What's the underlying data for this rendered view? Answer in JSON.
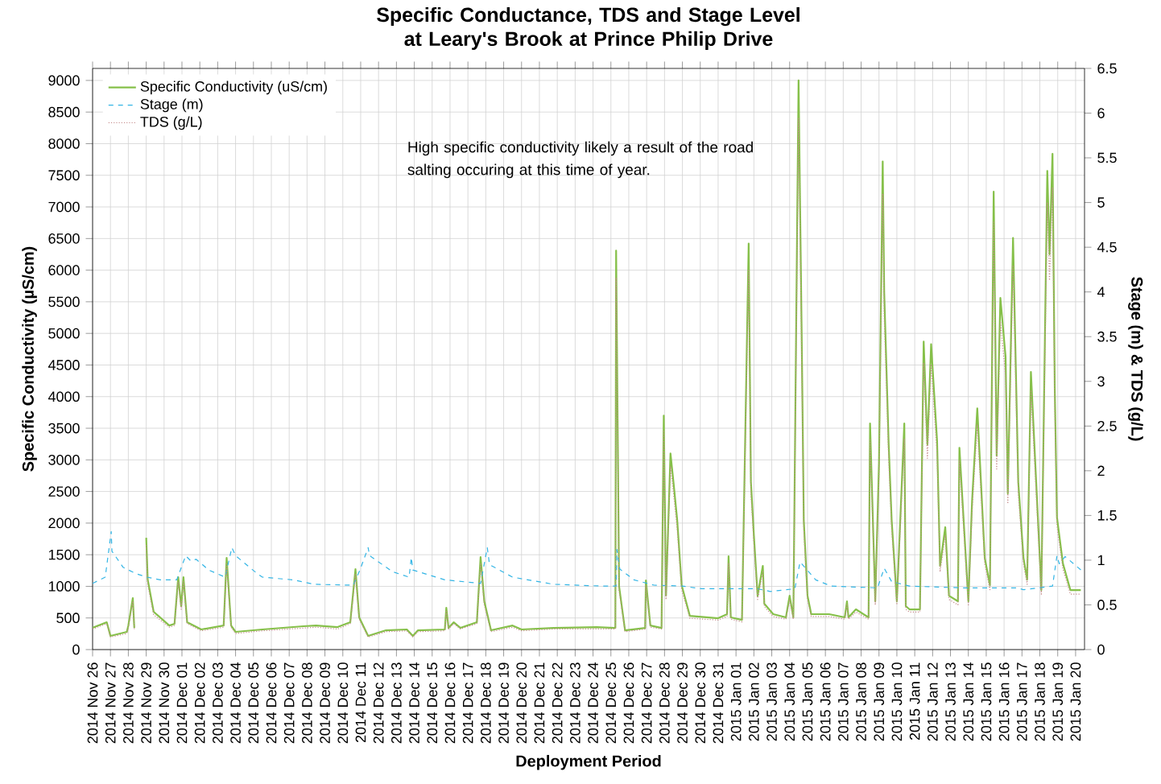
{
  "chart_data": {
    "type": "line",
    "title": "Specific Conductance, TDS and Stage Level at Leary's Brook at Prince Philip Drive",
    "xlabel": "Deployment Period",
    "ylabel": "Specific Conductivity (µS/cm)",
    "y2label": "Stage (m) & TDS (g/L)",
    "annotations": [
      "High specific conductivity likely a result of the road salting occuring at this time of year."
    ],
    "grid": true,
    "legend": "top left",
    "xlim": [
      "2014-11-26T00:00",
      "2015-01-20T12:00"
    ],
    "ylim": [
      0,
      9190
    ],
    "yticks": [
      0,
      500,
      1000,
      1500,
      2000,
      2500,
      3000,
      3500,
      4000,
      4500,
      5000,
      5500,
      6000,
      6500,
      7000,
      7500,
      8000,
      8500,
      9000
    ],
    "y2lim": [
      0,
      6.5
    ],
    "y2ticks": [
      0,
      0.5,
      1,
      1.5,
      2,
      2.5,
      3,
      3.5,
      4,
      4.5,
      5,
      5.5,
      6,
      6.5
    ],
    "xticks": [
      {
        "value": "2014-11-26",
        "label": "2014 Nov 26"
      },
      {
        "value": "2014-11-27",
        "label": "2014 Nov 27"
      },
      {
        "value": "2014-11-28",
        "label": "2014 Nov 28"
      },
      {
        "value": "2014-11-29",
        "label": "2014 Nov 29"
      },
      {
        "value": "2014-11-30",
        "label": "2014 Nov 30"
      },
      {
        "value": "2014-12-01",
        "label": "2014 Dec 01"
      },
      {
        "value": "2014-12-02",
        "label": "2014 Dec 02"
      },
      {
        "value": "2014-12-03",
        "label": "2014 Dec 03"
      },
      {
        "value": "2014-12-04",
        "label": "2014 Dec 04"
      },
      {
        "value": "2014-12-05",
        "label": "2014 Dec 05"
      },
      {
        "value": "2014-12-06",
        "label": "2014 Dec 06"
      },
      {
        "value": "2014-12-07",
        "label": "2014 Dec 07"
      },
      {
        "value": "2014-12-08",
        "label": "2014 Dec 08"
      },
      {
        "value": "2014-12-09",
        "label": "2014 Dec 09"
      },
      {
        "value": "2014-12-10",
        "label": "2014 Dec 10"
      },
      {
        "value": "2014-12-11",
        "label": "2014 Dec 11"
      },
      {
        "value": "2014-12-12",
        "label": "2014 Dec 12"
      },
      {
        "value": "2014-12-13",
        "label": "2014 Dec 13"
      },
      {
        "value": "2014-12-14",
        "label": "2014 Dec 14"
      },
      {
        "value": "2014-12-15",
        "label": "2014 Dec 15"
      },
      {
        "value": "2014-12-16",
        "label": "2014 Dec 16"
      },
      {
        "value": "2014-12-17",
        "label": "2014 Dec 17"
      },
      {
        "value": "2014-12-18",
        "label": "2014 Dec 18"
      },
      {
        "value": "2014-12-19",
        "label": "2014 Dec 19"
      },
      {
        "value": "2014-12-20",
        "label": "2014 Dec 20"
      },
      {
        "value": "2014-12-21",
        "label": "2014 Dec 21"
      },
      {
        "value": "2014-12-22",
        "label": "2014 Dec 22"
      },
      {
        "value": "2014-12-23",
        "label": "2014 Dec 23"
      },
      {
        "value": "2014-12-24",
        "label": "2014 Dec 24"
      },
      {
        "value": "2014-12-25",
        "label": "2014 Dec 25"
      },
      {
        "value": "2014-12-26",
        "label": "2014 Dec 26"
      },
      {
        "value": "2014-12-27",
        "label": "2014 Dec 27"
      },
      {
        "value": "2014-12-28",
        "label": "2014 Dec 28"
      },
      {
        "value": "2014-12-29",
        "label": "2014 Dec 29"
      },
      {
        "value": "2014-12-30",
        "label": "2014 Dec 30"
      },
      {
        "value": "2014-12-31",
        "label": "2014 Dec 31"
      },
      {
        "value": "2015-01-01",
        "label": "2015 Jan 01"
      },
      {
        "value": "2015-01-02",
        "label": "2015 Jan 02"
      },
      {
        "value": "2015-01-03",
        "label": "2015 Jan 03"
      },
      {
        "value": "2015-01-04",
        "label": "2015 Jan 04"
      },
      {
        "value": "2015-01-05",
        "label": "2015 Jan 05"
      },
      {
        "value": "2015-01-06",
        "label": "2015 Jan 06"
      },
      {
        "value": "2015-01-07",
        "label": "2015 Jan 07"
      },
      {
        "value": "2015-01-08",
        "label": "2015 Jan 08"
      },
      {
        "value": "2015-01-09",
        "label": "2015 Jan 09"
      },
      {
        "value": "2015-01-10",
        "label": "2015 Jan 10"
      },
      {
        "value": "2015-01-11",
        "label": "2015 Jan 11"
      },
      {
        "value": "2015-01-12",
        "label": "2015 Jan 12"
      },
      {
        "value": "2015-01-13",
        "label": "2015 Jan 13"
      },
      {
        "value": "2015-01-14",
        "label": "2015 Jan 14"
      },
      {
        "value": "2015-01-15",
        "label": "2015 Jan 15"
      },
      {
        "value": "2015-01-16",
        "label": "2015 Jan 16"
      },
      {
        "value": "2015-01-17",
        "label": "2015 Jan 17"
      },
      {
        "value": "2015-01-18",
        "label": "2015 Jan 18"
      },
      {
        "value": "2015-01-19",
        "label": "2015 Jan 19"
      },
      {
        "value": "2015-01-20",
        "label": "2015 Jan 20"
      }
    ],
    "x": [
      "2014-11-26T00:00",
      "2014-11-26T19:00",
      "2014-11-27T00:00",
      "2014-11-27T22:00",
      "2014-11-28T00:00",
      "2014-11-28T06:00",
      "2014-11-28T08:00",
      "2014-11-28T17:00",
      "2014-11-29T00:00",
      "2014-11-29T01:00",
      "2014-11-29T02:00",
      "2014-11-29T10:00",
      "2014-11-30T07:00",
      "2014-11-30T14:00",
      "2014-11-30T19:00",
      "2014-11-30T23:00",
      "2014-12-01T02:00",
      "2014-12-01T07:00",
      "2014-12-02T02:00",
      "2014-12-03T08:00",
      "2014-12-03T12:00",
      "2014-12-03T18:00",
      "2014-12-04T00:00",
      "2014-12-05T12:00",
      "2014-12-07T19:00",
      "2014-12-08T12:00",
      "2014-12-09T17:00",
      "2014-12-10T10:00",
      "2014-12-10T17:00",
      "2014-12-10T22:00",
      "2014-12-11T10:00",
      "2014-12-12T10:00",
      "2014-12-13T14:00",
      "2014-12-13T22:00",
      "2014-12-14T05:00",
      "2014-12-15T17:00",
      "2014-12-15T19:00",
      "2014-12-15T22:00",
      "2014-12-16T05:00",
      "2014-12-16T14:00",
      "2014-12-17T12:00",
      "2014-12-17T17:00",
      "2014-12-17T22:00",
      "2014-12-18T07:00",
      "2014-12-19T12:00",
      "2014-12-20T00:00",
      "2014-12-21T19:00",
      "2014-12-24T05:00",
      "2014-12-25T06:00",
      "2014-12-25T07:00",
      "2014-12-25T11:00",
      "2014-12-25T19:00",
      "2014-12-26T22:00",
      "2014-12-26T23:00",
      "2014-12-27T05:00",
      "2014-12-27T20:00",
      "2014-12-27T23:00",
      "2014-12-28T02:00",
      "2014-12-28T08:00",
      "2014-12-28T12:00",
      "2014-12-28T17:00",
      "2014-12-28T23:00",
      "2014-12-29T10:00",
      "2014-12-31T00:00",
      "2014-12-31T12:00",
      "2014-12-31T14:00",
      "2014-12-31T17:00",
      "2015-01-01T08:00",
      "2015-01-01T17:00",
      "2015-01-01T20:00",
      "2015-01-02T00:00",
      "2015-01-02T05:00",
      "2015-01-02T12:00",
      "2015-01-02T14:00",
      "2015-01-03T02:00",
      "2015-01-03T19:00",
      "2015-01-04T00:00",
      "2015-01-04T05:00",
      "2015-01-04T12:00",
      "2015-01-04T16:00",
      "2015-01-04T19:00",
      "2015-01-05T00:00",
      "2015-01-05T05:00",
      "2015-01-06T05:00",
      "2015-01-07T02:00",
      "2015-01-07T05:00",
      "2015-01-07T07:00",
      "2015-01-07T17:00",
      "2015-01-08T10:00",
      "2015-01-08T12:00",
      "2015-01-08T19:00",
      "2015-01-09T00:00",
      "2015-01-09T05:00",
      "2015-01-09T07:00",
      "2015-01-09T13:00",
      "2015-01-09T17:00",
      "2015-01-10T00:00",
      "2015-01-10T10:00",
      "2015-01-10T12:00",
      "2015-01-10T17:00",
      "2015-01-11T07:00",
      "2015-01-11T12:00",
      "2015-01-11T17:00",
      "2015-01-11T22:00",
      "2015-01-12T06:00",
      "2015-01-12T10:00",
      "2015-01-12T17:00",
      "2015-01-12T22:00",
      "2015-01-13T10:00",
      "2015-01-13T12:00",
      "2015-01-14T00:00",
      "2015-01-14T05:00",
      "2015-01-14T12:00",
      "2015-01-14T22:00",
      "2015-01-15T05:00",
      "2015-01-15T10:00",
      "2015-01-15T14:00",
      "2015-01-15T19:00",
      "2015-01-16T02:00",
      "2015-01-16T05:00",
      "2015-01-16T12:00",
      "2015-01-16T19:00",
      "2015-01-17T02:00",
      "2015-01-17T07:00",
      "2015-01-17T12:00",
      "2015-01-18T02:00",
      "2015-01-18T10:00",
      "2015-01-18T13:00",
      "2015-01-18T17:00",
      "2015-01-18T20:00",
      "2015-01-18T23:00",
      "2015-01-19T07:00",
      "2015-01-19T17:00",
      "2015-01-20T07:00"
    ],
    "series": [
      {
        "name": "Specific Conductivity (uS/cm)",
        "color": "#86c04a",
        "line_style": "solid",
        "values": [
          343,
          432,
          216,
          280,
          380,
          814,
          343,
          null,
          1768,
          1450,
          1107,
          598,
          380,
          407,
          1145,
          687,
          1145,
          432,
          318,
          380,
          1450,
          380,
          280,
          318,
          369,
          380,
          356,
          432,
          1272,
          509,
          216,
          305,
          318,
          216,
          305,
          318,
          661,
          343,
          432,
          343,
          432,
          1463,
          763,
          305,
          380,
          318,
          343,
          356,
          343,
          6310,
          1000,
          305,
          343,
          1094,
          380,
          343,
          3700,
          852,
          3100,
          2650,
          2050,
          1018,
          534,
          496,
          560,
          1475,
          509,
          470,
          6420,
          2650,
          1806,
          852,
          1323,
          725,
          560,
          509,
          852,
          509,
          9000,
          5160,
          2050,
          852,
          560,
          560,
          509,
          763,
          509,
          636,
          509,
          3574,
          763,
          2950,
          7720,
          5650,
          3245,
          2050,
          763,
          3574,
          687,
          636,
          636,
          4870,
          3245,
          4830,
          3300,
          1323,
          1935,
          852,
          763,
          3190,
          763,
          2350,
          3815,
          1450,
          1018,
          7240,
          3065,
          5560,
          4630,
          2470,
          6510,
          2650,
          1450,
          1107,
          4390,
          941,
          7570,
          6250,
          7840,
          4150,
          2090,
          1361,
          941,
          941
        ]
      },
      {
        "name": "Stage (m)",
        "color": "#33b5e5",
        "line_style": "dashed",
        "axis": "y2",
        "x": [
          "2014-11-26T00:00",
          "2014-11-26T17:00",
          "2014-11-27T01:00",
          "2014-11-27T02:00",
          "2014-11-27T17:00",
          "2014-11-28T10:00",
          "2014-11-29T01:00",
          "2014-11-29T19:00",
          "2014-11-30T17:00",
          "2014-12-01T05:00",
          "2014-12-01T12:00",
          "2014-12-01T19:00",
          "2014-12-02T12:00",
          "2014-12-03T10:00",
          "2014-12-03T19:00",
          "2014-12-04T00:00",
          "2014-12-05T05:00",
          "2014-12-05T12:00",
          "2014-12-07T05:00",
          "2014-12-08T10:00",
          "2014-12-10T14:00",
          "2014-12-10T23:00",
          "2014-12-11T10:00",
          "2014-12-11T12:00",
          "2014-12-12T19:00",
          "2014-12-13T17:00",
          "2014-12-13T20:00",
          "2014-12-13T22:00",
          "2014-12-15T17:00",
          "2014-12-17T17:00",
          "2014-12-18T02:00",
          "2014-12-18T05:00",
          "2014-12-19T12:00",
          "2014-12-21T19:00",
          "2014-12-24T12:00",
          "2014-12-25T07:00",
          "2014-12-25T08:00",
          "2014-12-25T12:00",
          "2014-12-26T07:00",
          "2014-12-27T10:00",
          "2014-12-29T00:00",
          "2014-12-30T02:00",
          "2015-01-02T05:00",
          "2015-01-02T22:00",
          "2015-01-04T07:00",
          "2015-01-04T14:00",
          "2015-01-05T11:00",
          "2015-01-06T08:00",
          "2015-01-08T22:00",
          "2015-01-09T07:00",
          "2015-01-09T17:00",
          "2015-01-10T17:00",
          "2015-01-13T17:00",
          "2015-01-16T17:00",
          "2015-01-17T02:00",
          "2015-01-18T17:00",
          "2015-01-18T23:00",
          "2015-01-19T02:00",
          "2015-01-19T10:00",
          "2015-01-20T10:00"
        ],
        "values": [
          0.74,
          0.81,
          1.32,
          1.1,
          0.92,
          0.85,
          0.81,
          0.78,
          0.78,
          1.05,
          0.99,
          1.01,
          0.89,
          0.81,
          1.14,
          1.05,
          0.85,
          0.81,
          0.78,
          0.73,
          0.72,
          0.89,
          1.14,
          1.05,
          0.87,
          0.81,
          1.03,
          0.89,
          0.78,
          0.74,
          1.14,
          0.95,
          0.81,
          0.73,
          0.71,
          0.71,
          1.12,
          0.9,
          0.78,
          0.72,
          0.71,
          0.68,
          0.68,
          0.65,
          0.68,
          0.98,
          0.78,
          0.71,
          0.69,
          0.91,
          0.76,
          0.71,
          0.69,
          0.69,
          0.67,
          0.71,
          1.05,
          0.96,
          1.04,
          0.87
        ]
      },
      {
        "name": "TDS (g/L)",
        "color": "#c48a8a",
        "line_style": "dotted",
        "axis": "y2",
        "values": [
          0.23,
          0.29,
          0.14,
          0.18,
          0.25,
          0.54,
          0.23,
          null,
          1.17,
          0.96,
          0.73,
          0.39,
          0.25,
          0.27,
          0.76,
          0.45,
          0.76,
          0.29,
          0.21,
          0.25,
          0.96,
          0.25,
          0.18,
          0.21,
          0.24,
          0.25,
          0.23,
          0.29,
          0.84,
          0.34,
          0.14,
          0.2,
          0.21,
          0.14,
          0.2,
          0.21,
          0.44,
          0.23,
          0.29,
          0.23,
          0.29,
          0.97,
          0.5,
          0.2,
          0.25,
          0.21,
          0.23,
          0.23,
          0.23,
          4.16,
          0.66,
          0.2,
          0.23,
          0.72,
          0.25,
          0.23,
          2.44,
          0.56,
          2.05,
          1.75,
          1.35,
          0.67,
          0.35,
          0.33,
          0.37,
          0.97,
          0.34,
          0.31,
          4.24,
          1.75,
          1.19,
          0.56,
          0.87,
          0.48,
          0.37,
          0.34,
          0.56,
          0.34,
          5.94,
          3.41,
          1.35,
          0.56,
          0.37,
          0.37,
          0.34,
          0.5,
          0.34,
          0.42,
          0.34,
          2.36,
          0.5,
          1.95,
          5.1,
          3.73,
          2.14,
          1.35,
          0.5,
          2.36,
          0.45,
          0.42,
          0.42,
          3.21,
          2.14,
          3.19,
          2.18,
          0.87,
          1.28,
          0.56,
          0.5,
          2.11,
          0.5,
          1.55,
          2.52,
          0.96,
          0.67,
          4.78,
          2.02,
          3.67,
          3.06,
          1.63,
          4.3,
          1.75,
          0.96,
          0.73,
          2.9,
          0.62,
          5.0,
          4.13,
          5.17,
          2.74,
          1.38,
          0.9,
          0.62,
          0.62
        ]
      }
    ]
  }
}
